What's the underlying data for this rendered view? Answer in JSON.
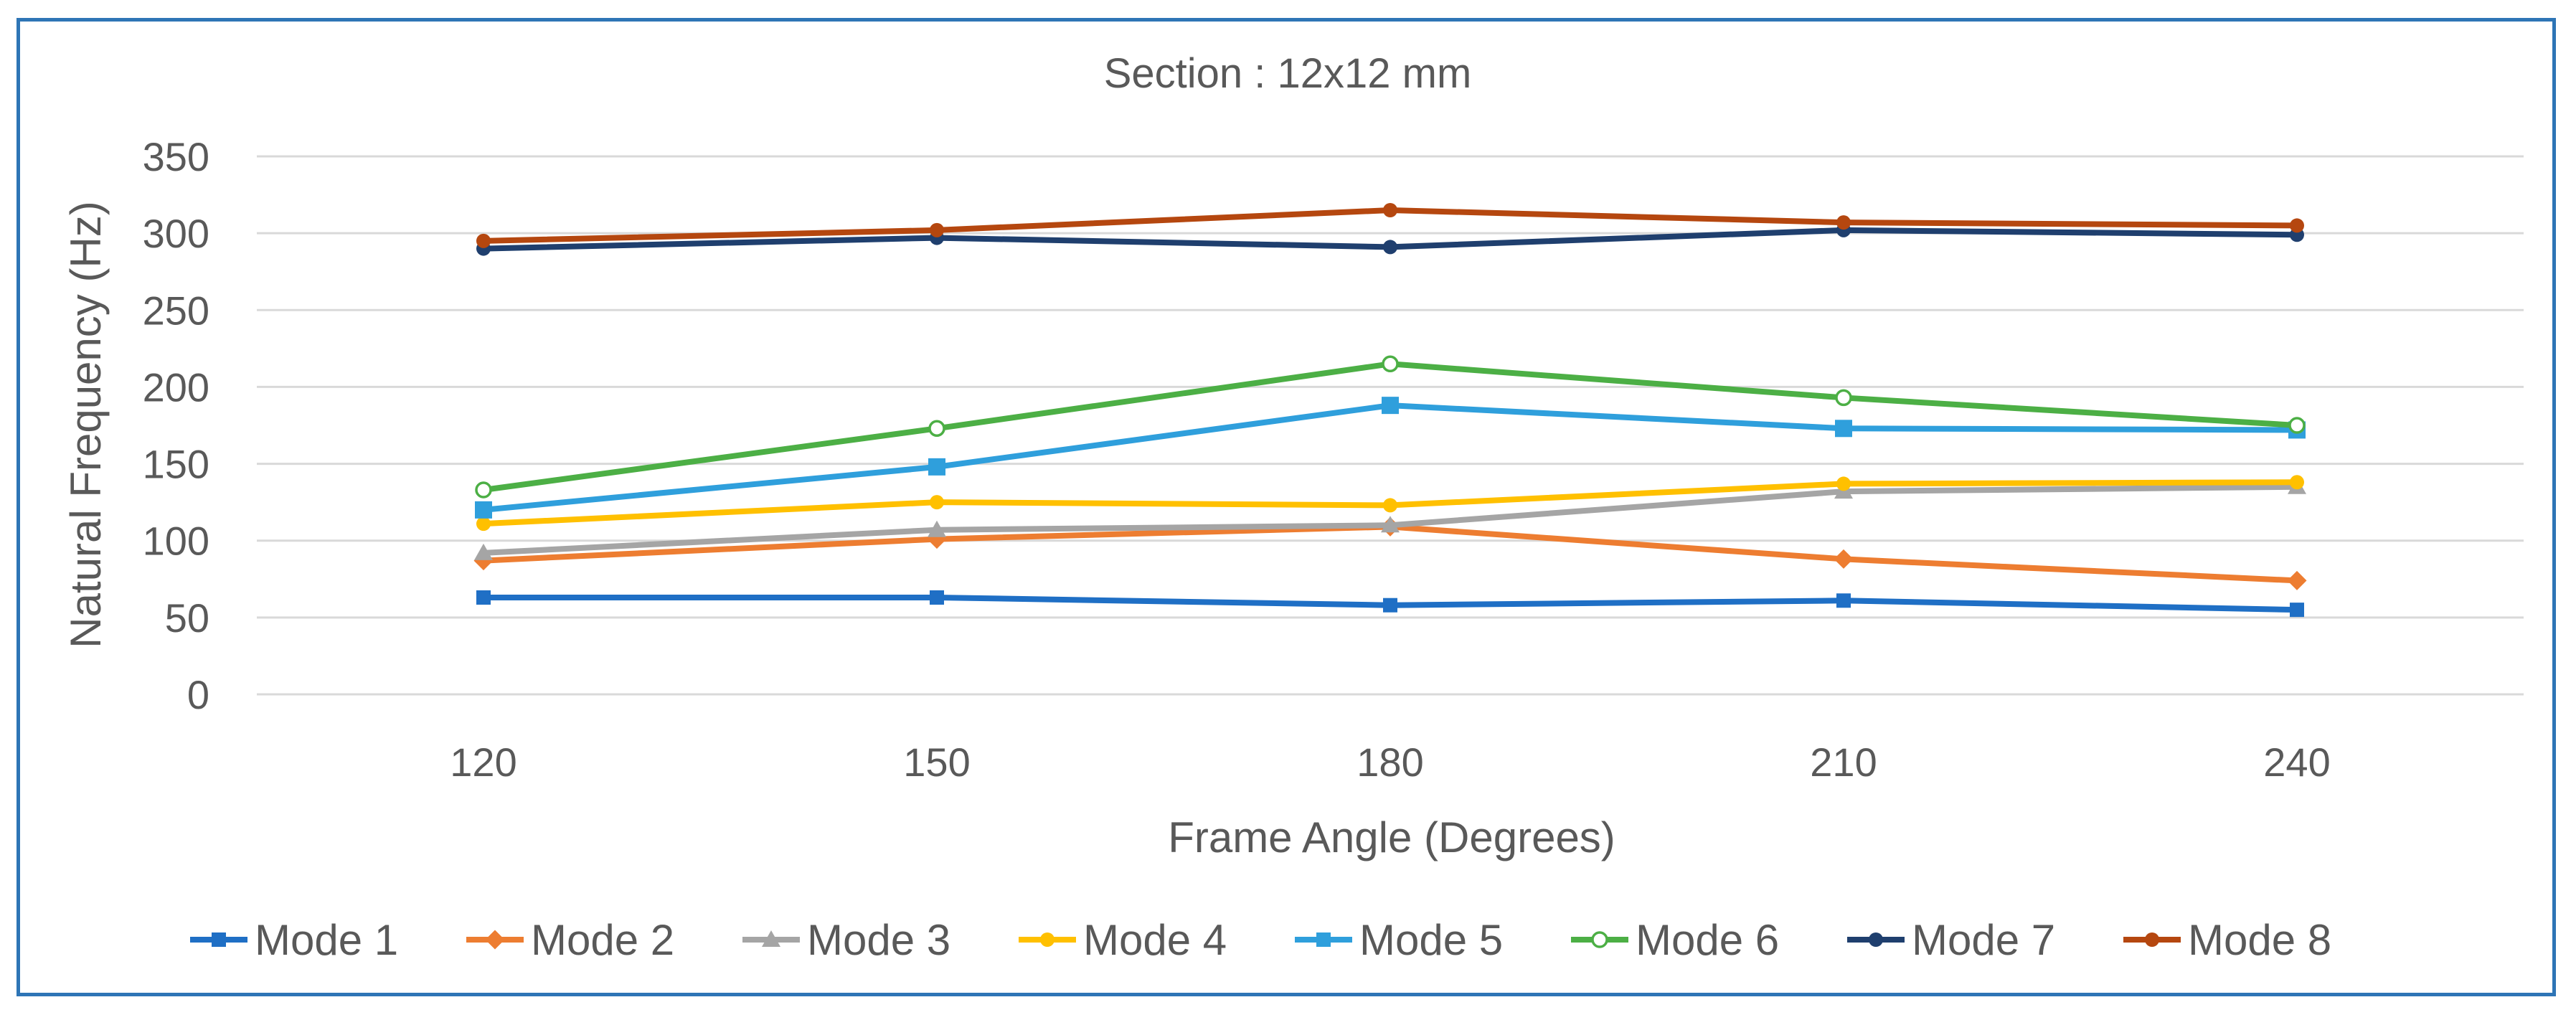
{
  "chart_data": {
    "type": "line",
    "title": "Section : 12x12 mm",
    "xlabel": "Frame Angle (Degrees)",
    "ylabel": "Natural Frequency (Hz)",
    "categories": [
      "120",
      "150",
      "180",
      "210",
      "240"
    ],
    "ylim": [
      0,
      350
    ],
    "yticks": [
      0,
      50,
      100,
      150,
      200,
      250,
      300,
      350
    ],
    "grid": true,
    "legend_position": "bottom",
    "series": [
      {
        "name": "Mode 1",
        "color": "#1f6fc5",
        "marker": "square",
        "values": [
          63,
          63,
          58,
          61,
          55
        ]
      },
      {
        "name": "Mode 2",
        "color": "#ed7d31",
        "marker": "diamond",
        "values": [
          87,
          101,
          109,
          88,
          74
        ]
      },
      {
        "name": "Mode 3",
        "color": "#a5a5a5",
        "marker": "triangle",
        "values": [
          92,
          107,
          110,
          132,
          135
        ]
      },
      {
        "name": "Mode 4",
        "color": "#ffc000",
        "marker": "circle",
        "values": [
          111,
          125,
          123,
          137,
          138
        ]
      },
      {
        "name": "Mode 5",
        "color": "#2f9fdc",
        "marker": "square",
        "values": [
          120,
          148,
          188,
          173,
          172
        ]
      },
      {
        "name": "Mode 6",
        "color": "#4caf45",
        "marker": "circle-open",
        "values": [
          133,
          173,
          215,
          193,
          175
        ]
      },
      {
        "name": "Mode 7",
        "color": "#1f3f6e",
        "marker": "circle",
        "values": [
          290,
          297,
          291,
          302,
          299
        ]
      },
      {
        "name": "Mode 8",
        "color": "#b5470f",
        "marker": "circle",
        "values": [
          295,
          302,
          315,
          307,
          305
        ]
      }
    ]
  }
}
